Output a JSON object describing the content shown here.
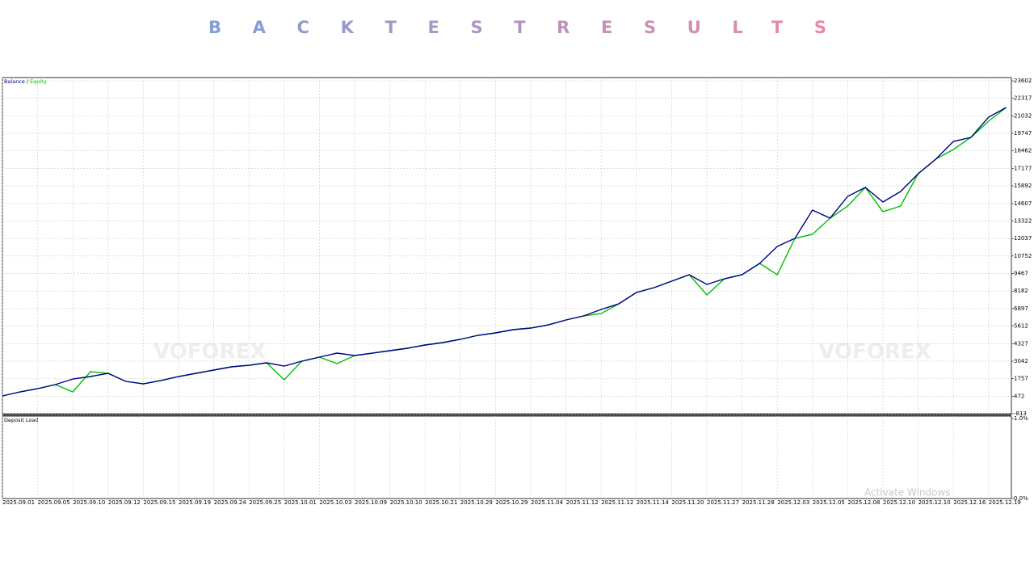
{
  "chart_data": {
    "type": "line",
    "title": "BACKTESTRESULTS",
    "title_colors": [
      "#7f9fd6",
      "#e98aa6"
    ],
    "categories": [
      "2025.09.01",
      null,
      "2025.09.05",
      null,
      "2025.09.10",
      null,
      "2025.09.12",
      null,
      "2025.09.15",
      null,
      "2025.09.19",
      null,
      "2025.09.24",
      null,
      "2025.09.25",
      null,
      "2025.10.01",
      null,
      "2025.10.03",
      null,
      "2025.10.09",
      null,
      "2025.10.10",
      null,
      "2025.10.21",
      null,
      "2025.10.29",
      null,
      "2025.10.29",
      null,
      "2025.11.04",
      null,
      "2025.11.12",
      null,
      "2025.11.12",
      null,
      "2025.11.14",
      null,
      "2025.11.20",
      null,
      "2025.11.27",
      null,
      "2025.11.28",
      null,
      "2025.12.03",
      null,
      "2025.12.05",
      null,
      "2025.12.08",
      null,
      "2025.12.10",
      null,
      "2025.12.10",
      null,
      "2025.12.16",
      null,
      "2025.12.19",
      null
    ],
    "series": [
      {
        "name": "Balance",
        "color": "#00008b",
        "values": [
          491,
          787,
          1024,
          1320,
          1735,
          1913,
          2150,
          1557,
          1379,
          1617,
          1913,
          2150,
          2387,
          2624,
          2742,
          2920,
          2683,
          3039,
          3335,
          3631,
          3454,
          3631,
          3809,
          3987,
          4224,
          4402,
          4639,
          4935,
          5113,
          5350,
          5468,
          5705,
          6061,
          6357,
          6831,
          7246,
          8076,
          8431,
          8906,
          9380,
          8668,
          9083,
          9380,
          10209,
          11454,
          12046,
          14120,
          13528,
          15128,
          15780,
          14713,
          15483,
          16787,
          17854,
          19157,
          19454,
          20935,
          21646
        ]
      },
      {
        "name": "Equity",
        "color": "#00c000",
        "values": [
          491,
          787,
          1024,
          1320,
          787,
          2268,
          2150,
          1557,
          1379,
          1617,
          1913,
          2150,
          2387,
          2624,
          2742,
          2920,
          1676,
          3039,
          3335,
          2861,
          3454,
          3631,
          3809,
          3987,
          4224,
          4402,
          4639,
          4935,
          5113,
          5350,
          5468,
          5705,
          6061,
          6357,
          6535,
          7246,
          8076,
          8431,
          8906,
          9380,
          7898,
          9083,
          9380,
          10209,
          9380,
          12046,
          12343,
          13528,
          14417,
          15780,
          14002,
          14417,
          16787,
          17854,
          18565,
          19454,
          20639,
          21646
        ]
      }
    ],
    "legend_separator": "/",
    "ylim": [
      -813,
      23602
    ],
    "yticks": [
      23602,
      22317,
      21032,
      19747,
      18462,
      17177,
      15892,
      14607,
      13322,
      12037,
      10752,
      9467,
      8182,
      6897,
      5612,
      4327,
      3042,
      1757,
      472,
      -813
    ],
    "grid": true,
    "subpanel": {
      "title": "Deposit Load",
      "ylim": [
        0,
        1
      ],
      "yticks": [
        {
          "value": 1,
          "label": "1.0%"
        },
        {
          "value": 0,
          "label": "0.0%"
        }
      ]
    },
    "annotations": [
      "VOFOREX",
      "VOFOREX",
      "Activate Windows"
    ]
  }
}
